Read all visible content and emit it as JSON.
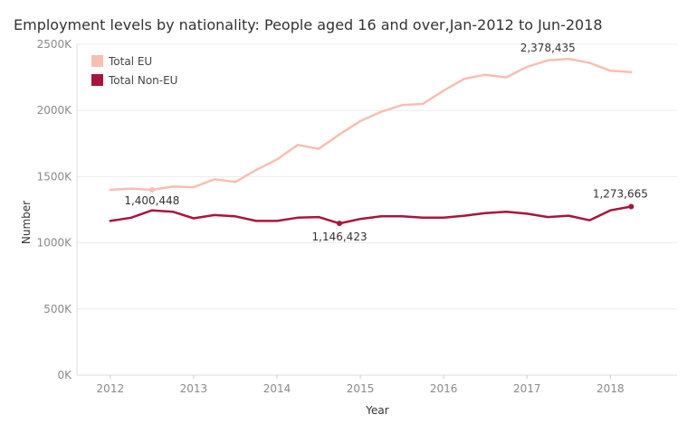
{
  "chart_data": {
    "type": "line",
    "title": "Employment levels by nationality: People aged 16 and over,Jan-2012 to Jun-2018",
    "xlabel": "Year",
    "ylabel": "Number",
    "x": [
      2012.0,
      2012.25,
      2012.5,
      2012.75,
      2013.0,
      2013.25,
      2013.5,
      2013.75,
      2014.0,
      2014.25,
      2014.5,
      2014.75,
      2015.0,
      2015.25,
      2015.5,
      2015.75,
      2016.0,
      2016.25,
      2016.5,
      2016.75,
      2017.0,
      2017.25,
      2017.5,
      2017.75,
      2018.0,
      2018.25
    ],
    "xticks": [
      "2012",
      "2013",
      "2014",
      "2015",
      "2016",
      "2017",
      "2018"
    ],
    "xlim": [
      2011.6,
      2018.8
    ],
    "ylim": [
      0,
      2500000
    ],
    "yticks": [
      "0K",
      "500K",
      "1000K",
      "1500K",
      "2000K",
      "2500K"
    ],
    "grid": true,
    "legend_position": "top-left",
    "series": [
      {
        "name": "Total EU",
        "color": "#f7bfb2",
        "values": [
          1400000,
          1410000,
          1400448,
          1425000,
          1420000,
          1480000,
          1460000,
          1550000,
          1630000,
          1740000,
          1710000,
          1820000,
          1920000,
          1990000,
          2040000,
          2050000,
          2150000,
          2240000,
          2270000,
          2250000,
          2330000,
          2378435,
          2390000,
          2360000,
          2300000,
          2290000
        ]
      },
      {
        "name": "Total Non-EU",
        "color": "#a8153c",
        "values": [
          1165000,
          1190000,
          1245000,
          1235000,
          1185000,
          1210000,
          1200000,
          1165000,
          1165000,
          1190000,
          1195000,
          1146423,
          1180000,
          1200000,
          1200000,
          1190000,
          1190000,
          1205000,
          1225000,
          1235000,
          1220000,
          1195000,
          1205000,
          1170000,
          1245000,
          1273665
        ]
      }
    ],
    "annotations": [
      {
        "series": 0,
        "index": 2,
        "text": "1,400,448",
        "marker": true
      },
      {
        "series": 0,
        "index": 21,
        "text": "2,378,435",
        "marker": false
      },
      {
        "series": 1,
        "index": 11,
        "text": "1,146,423",
        "marker": true
      },
      {
        "series": 1,
        "index": 25,
        "text": "1,273,665",
        "marker": true
      }
    ]
  }
}
